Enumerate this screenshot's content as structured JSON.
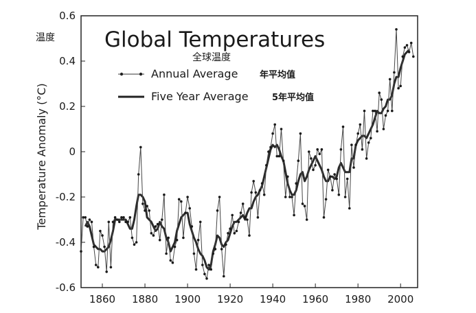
{
  "chart_data": {
    "type": "line",
    "title": "Global Temperatures",
    "subtitle_cn": "全球温度",
    "ylabel": "Temperature Anomaly (°C)",
    "ylabel_cn": "温度",
    "xlabel": "",
    "xlim": [
      1850,
      2008
    ],
    "ylim": [
      -0.6,
      0.6
    ],
    "x_ticks": [
      1860,
      1880,
      1900,
      1920,
      1940,
      1960,
      1980,
      2000
    ],
    "y_ticks": [
      0.6,
      0.4,
      0.2,
      0,
      -0.2,
      -0.4,
      -0.6
    ],
    "x_tick_labels": [
      "1860",
      "1880",
      "1900",
      "1920",
      "1940",
      "1960",
      "1980",
      "2000"
    ],
    "y_tick_labels": [
      "0.6",
      "0.4",
      "0.2",
      "0",
      "-0.2",
      "-0.4",
      "-0.6"
    ],
    "grid": false,
    "legend": {
      "placement": "top-left",
      "entries": [
        {
          "label": "Annual Average",
          "label_cn": "年平均值",
          "style": "line-dots"
        },
        {
          "label": "Five Year Average",
          "label_cn": "5年平均值",
          "style": "thick-line"
        }
      ]
    },
    "series": [
      {
        "name": "Annual Average",
        "x": [
          1850,
          1851,
          1852,
          1853,
          1854,
          1855,
          1856,
          1857,
          1858,
          1859,
          1860,
          1861,
          1862,
          1863,
          1864,
          1865,
          1866,
          1867,
          1868,
          1869,
          1870,
          1871,
          1872,
          1873,
          1874,
          1875,
          1876,
          1877,
          1878,
          1879,
          1880,
          1881,
          1882,
          1883,
          1884,
          1885,
          1886,
          1887,
          1888,
          1889,
          1890,
          1891,
          1892,
          1893,
          1894,
          1895,
          1896,
          1897,
          1898,
          1899,
          1900,
          1901,
          1902,
          1903,
          1904,
          1905,
          1906,
          1907,
          1908,
          1909,
          1910,
          1911,
          1912,
          1913,
          1914,
          1915,
          1916,
          1917,
          1918,
          1919,
          1920,
          1921,
          1922,
          1923,
          1924,
          1925,
          1926,
          1927,
          1928,
          1929,
          1930,
          1931,
          1932,
          1933,
          1934,
          1935,
          1936,
          1937,
          1938,
          1939,
          1940,
          1941,
          1942,
          1943,
          1944,
          1945,
          1946,
          1947,
          1948,
          1949,
          1950,
          1951,
          1952,
          1953,
          1954,
          1955,
          1956,
          1957,
          1958,
          1959,
          1960,
          1961,
          1962,
          1963,
          1964,
          1965,
          1966,
          1967,
          1968,
          1969,
          1970,
          1971,
          1972,
          1973,
          1974,
          1975,
          1976,
          1977,
          1978,
          1979,
          1980,
          1981,
          1982,
          1983,
          1984,
          1985,
          1986,
          1987,
          1988,
          1989,
          1990,
          1991,
          1992,
          1993,
          1994,
          1995,
          1996,
          1997,
          1998,
          1999,
          2000,
          2001,
          2002,
          2003,
          2004,
          2005,
          2006
        ],
        "y": [
          -0.44,
          -0.29,
          -0.29,
          -0.33,
          -0.3,
          -0.31,
          -0.42,
          -0.5,
          -0.51,
          -0.35,
          -0.37,
          -0.42,
          -0.53,
          -0.31,
          -0.51,
          -0.31,
          -0.29,
          -0.3,
          -0.31,
          -0.29,
          -0.29,
          -0.31,
          -0.31,
          -0.29,
          -0.38,
          -0.41,
          -0.4,
          -0.1,
          0.02,
          -0.23,
          -0.26,
          -0.24,
          -0.26,
          -0.36,
          -0.37,
          -0.33,
          -0.32,
          -0.39,
          -0.3,
          -0.19,
          -0.45,
          -0.38,
          -0.48,
          -0.49,
          -0.42,
          -0.39,
          -0.21,
          -0.22,
          -0.38,
          -0.27,
          -0.2,
          -0.25,
          -0.33,
          -0.45,
          -0.52,
          -0.39,
          -0.31,
          -0.5,
          -0.54,
          -0.56,
          -0.5,
          -0.52,
          -0.45,
          -0.43,
          -0.26,
          -0.2,
          -0.43,
          -0.55,
          -0.41,
          -0.36,
          -0.34,
          -0.28,
          -0.36,
          -0.35,
          -0.31,
          -0.27,
          -0.23,
          -0.29,
          -0.3,
          -0.37,
          -0.18,
          -0.13,
          -0.18,
          -0.29,
          -0.17,
          -0.14,
          -0.19,
          -0.06,
          0.0,
          0.02,
          0.08,
          0.12,
          -0.02,
          -0.02,
          0.1,
          -0.04,
          -0.2,
          -0.11,
          -0.2,
          -0.2,
          -0.28,
          -0.14,
          -0.04,
          0.08,
          -0.23,
          -0.24,
          -0.3,
          0.0,
          -0.03,
          -0.08,
          -0.06,
          0.01,
          -0.01,
          0.01,
          -0.29,
          -0.21,
          -0.08,
          -0.11,
          -0.17,
          -0.1,
          -0.12,
          -0.19,
          0.01,
          0.11,
          -0.2,
          -0.12,
          -0.25,
          0.03,
          -0.07,
          0.03,
          0.08,
          0.12,
          0.01,
          0.18,
          -0.03,
          0.04,
          0.06,
          0.18,
          0.18,
          0.09,
          0.26,
          0.23,
          0.1,
          0.16,
          0.18,
          0.32,
          0.18,
          0.35,
          0.54,
          0.28,
          0.29,
          0.42,
          0.46,
          0.47,
          0.44,
          0.48,
          0.42
        ]
      },
      {
        "name": "Five Year Average",
        "x": [
          1852,
          1853,
          1854,
          1855,
          1856,
          1857,
          1858,
          1859,
          1860,
          1861,
          1862,
          1863,
          1864,
          1865,
          1866,
          1867,
          1868,
          1869,
          1870,
          1871,
          1872,
          1873,
          1874,
          1875,
          1876,
          1877,
          1878,
          1879,
          1880,
          1881,
          1882,
          1883,
          1884,
          1885,
          1886,
          1887,
          1888,
          1889,
          1890,
          1891,
          1892,
          1893,
          1894,
          1895,
          1896,
          1897,
          1898,
          1899,
          1900,
          1901,
          1902,
          1903,
          1904,
          1905,
          1906,
          1907,
          1908,
          1909,
          1910,
          1911,
          1912,
          1913,
          1914,
          1915,
          1916,
          1917,
          1918,
          1919,
          1920,
          1921,
          1922,
          1923,
          1924,
          1925,
          1926,
          1927,
          1928,
          1929,
          1930,
          1931,
          1932,
          1933,
          1934,
          1935,
          1936,
          1937,
          1938,
          1939,
          1940,
          1941,
          1942,
          1943,
          1944,
          1945,
          1946,
          1947,
          1948,
          1949,
          1950,
          1951,
          1952,
          1953,
          1954,
          1955,
          1956,
          1957,
          1958,
          1959,
          1960,
          1961,
          1962,
          1963,
          1964,
          1965,
          1966,
          1967,
          1968,
          1969,
          1970,
          1971,
          1972,
          1973,
          1974,
          1975,
          1976,
          1977,
          1978,
          1979,
          1980,
          1981,
          1982,
          1983,
          1984,
          1985,
          1986,
          1987,
          1988,
          1989,
          1990,
          1991,
          1992,
          1993,
          1994,
          1995,
          1996,
          1997,
          1998,
          1999,
          2000,
          2001,
          2002,
          2003,
          2004
        ],
        "y": [
          -0.33,
          -0.31,
          -0.33,
          -0.37,
          -0.41,
          -0.42,
          -0.43,
          -0.43,
          -0.44,
          -0.44,
          -0.43,
          -0.42,
          -0.39,
          -0.35,
          -0.3,
          -0.3,
          -0.3,
          -0.3,
          -0.3,
          -0.3,
          -0.32,
          -0.34,
          -0.34,
          -0.3,
          -0.24,
          -0.19,
          -0.19,
          -0.2,
          -0.22,
          -0.29,
          -0.3,
          -0.31,
          -0.33,
          -0.35,
          -0.34,
          -0.31,
          -0.33,
          -0.34,
          -0.38,
          -0.4,
          -0.44,
          -0.42,
          -0.4,
          -0.35,
          -0.32,
          -0.29,
          -0.28,
          -0.27,
          -0.27,
          -0.32,
          -0.35,
          -0.38,
          -0.4,
          -0.43,
          -0.45,
          -0.46,
          -0.48,
          -0.51,
          -0.52,
          -0.5,
          -0.44,
          -0.41,
          -0.37,
          -0.38,
          -0.41,
          -0.42,
          -0.4,
          -0.39,
          -0.36,
          -0.33,
          -0.31,
          -0.31,
          -0.3,
          -0.29,
          -0.28,
          -0.3,
          -0.27,
          -0.25,
          -0.25,
          -0.22,
          -0.2,
          -0.19,
          -0.17,
          -0.15,
          -0.11,
          -0.07,
          -0.03,
          0.01,
          0.03,
          0.02,
          0.03,
          0.01,
          -0.02,
          -0.04,
          -0.09,
          -0.14,
          -0.17,
          -0.19,
          -0.19,
          -0.17,
          -0.13,
          -0.1,
          -0.09,
          -0.13,
          -0.11,
          -0.08,
          -0.06,
          -0.04,
          -0.02,
          -0.04,
          -0.06,
          -0.08,
          -0.11,
          -0.13,
          -0.13,
          -0.11,
          -0.11,
          -0.12,
          -0.11,
          -0.07,
          -0.05,
          -0.07,
          -0.09,
          -0.09,
          -0.09,
          -0.03,
          -0.03,
          0.03,
          0.05,
          0.06,
          0.07,
          0.07,
          0.06,
          0.08,
          0.1,
          0.12,
          0.15,
          0.18,
          0.17,
          0.17,
          0.19,
          0.2,
          0.23,
          0.23,
          0.25,
          0.3,
          0.33,
          0.33,
          0.37,
          0.4,
          0.43,
          0.44,
          0.45
        ]
      }
    ]
  }
}
